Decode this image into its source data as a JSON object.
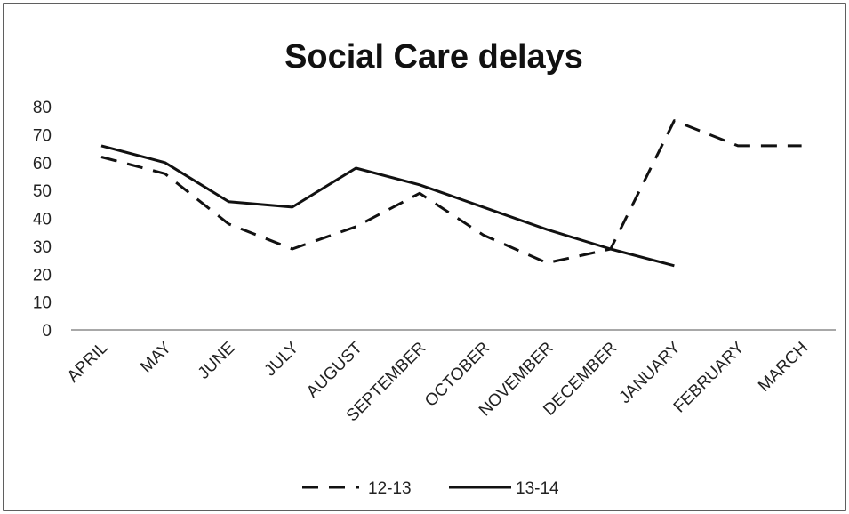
{
  "chart_data": {
    "type": "line",
    "title": "Social Care delays",
    "xlabel": "",
    "ylabel": "",
    "categories": [
      "APRIL",
      "MAY",
      "JUNE",
      "JULY",
      "AUGUST",
      "SEPTEMBER",
      "OCTOBER",
      "NOVEMBER",
      "DECEMBER",
      "JANUARY",
      "FEBRUARY",
      "MARCH"
    ],
    "ylim": [
      0,
      80
    ],
    "yticks": [
      0,
      10,
      20,
      30,
      40,
      50,
      60,
      70,
      80
    ],
    "grid": false,
    "legend": "bottom",
    "series": [
      {
        "name": "12-13",
        "style": "dashed",
        "color": "#111111",
        "values": [
          62,
          56,
          38,
          29,
          37,
          49,
          34,
          24,
          29,
          75,
          66,
          66
        ]
      },
      {
        "name": "13-14",
        "style": "solid",
        "color": "#111111",
        "values": [
          66,
          60,
          46,
          44,
          58,
          52,
          44,
          36,
          29,
          23,
          null,
          null
        ]
      }
    ]
  }
}
